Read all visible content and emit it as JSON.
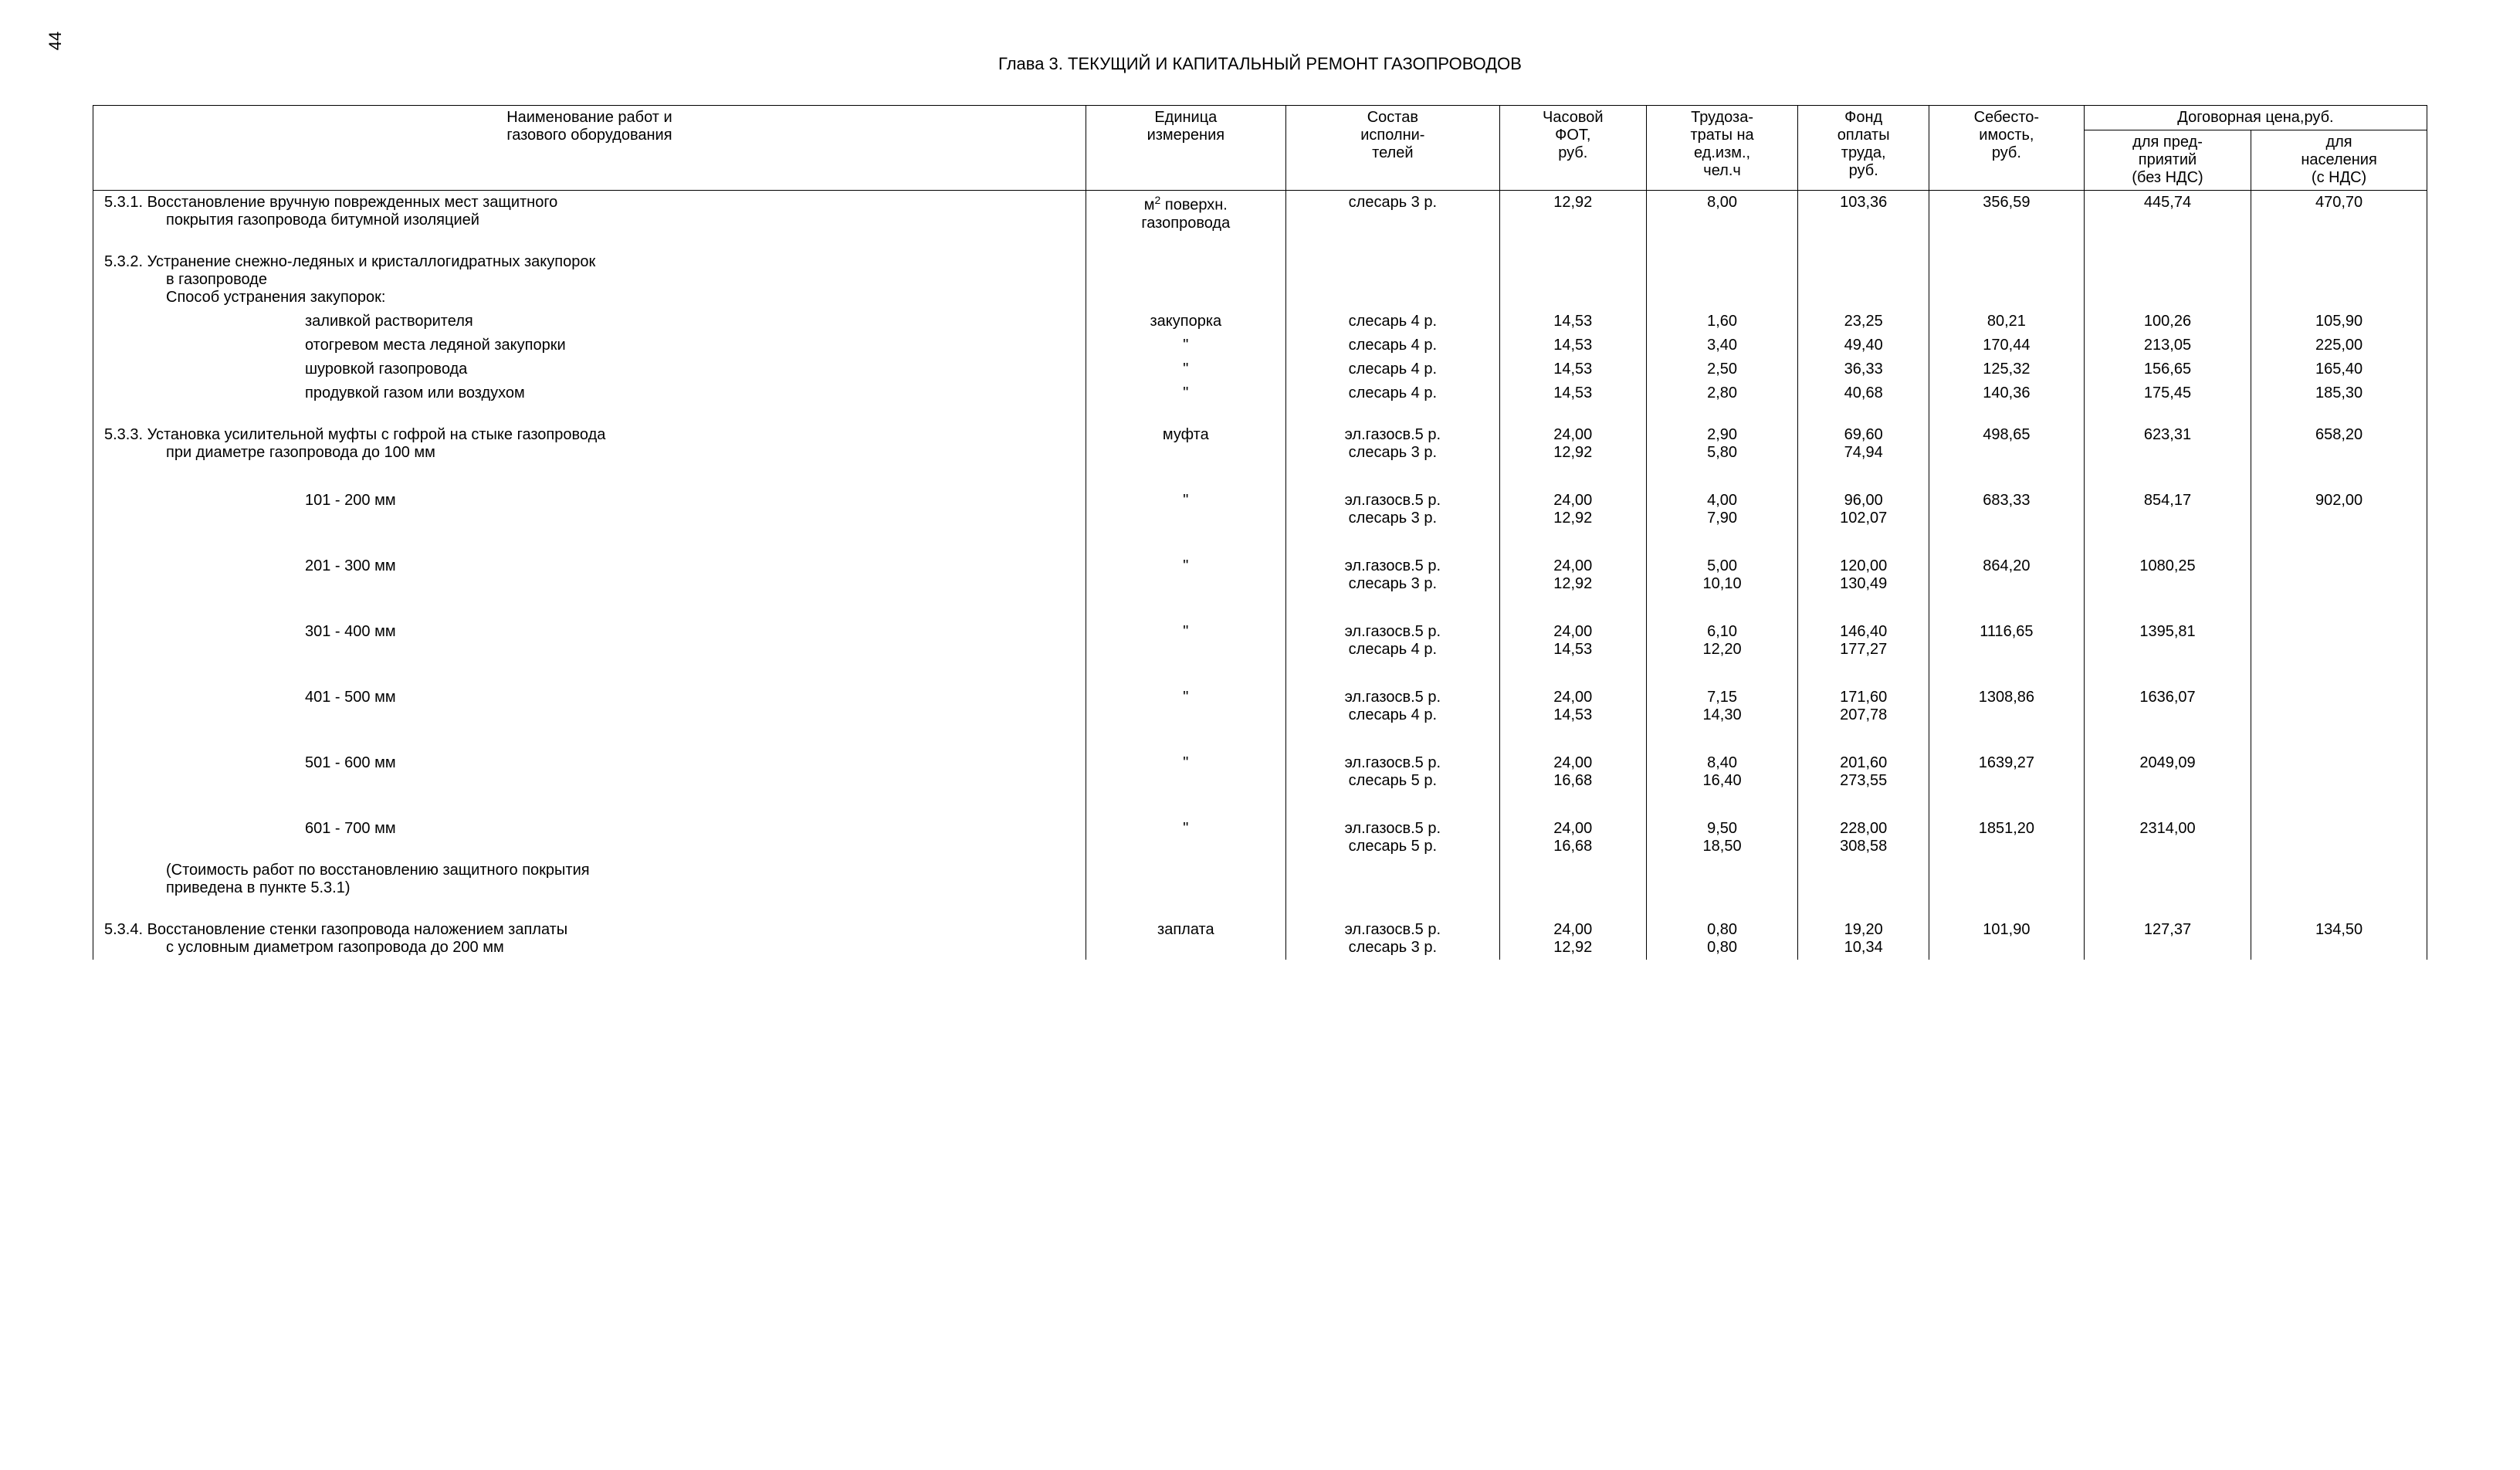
{
  "page_number": "44",
  "chapter_title": "Глава 3. ТЕКУЩИЙ  И  КАПИТАЛЬНЫЙ  РЕМОНТ  ГАЗОПРОВОДОВ",
  "columns": {
    "c1a": "Наименование работ и",
    "c1b": "газового оборудования",
    "c2a": "Единица",
    "c2b": "измерения",
    "c3a": "Состав",
    "c3b": "исполни-",
    "c3c": "телей",
    "c4a": "Часовой",
    "c4b": "ФОТ,",
    "c4c": "руб.",
    "c5a": "Трудоза-",
    "c5b": "траты на",
    "c5c": "ед.изм.,",
    "c5d": "чел.ч",
    "c6a": "Фонд",
    "c6b": "оплаты",
    "c6c": "труда,",
    "c6d": "руб.",
    "c7a": "Себесто-",
    "c7b": "имость,",
    "c7c": "руб.",
    "c8": "Договорная цена,руб.",
    "c8_1a": "для пред-",
    "c8_1b": "приятий",
    "c8_1c": "(без НДС)",
    "c8_2a": "для",
    "c8_2b": "населения",
    "c8_2c": "(с НДС)"
  },
  "rows": {
    "r1": {
      "name_l1": "5.3.1.  Восстановление вручную поврежденных мест защитного",
      "name_l2": "покрытия газопровода битумной изоляцией",
      "unit_l1": "м",
      "unit_sup": "2",
      "unit_l1b": " поверхн.",
      "unit_l2": "газопровода",
      "sost": "слесарь 3 р.",
      "fot": "12,92",
      "trud": "8,00",
      "fond": "103,36",
      "seb": "356,59",
      "dog1": "445,74",
      "dog2": "470,70"
    },
    "r2h": {
      "l1": "5.3.2.  Устранение  снежно-ледяных и кристаллогидратных закупорок",
      "l2": "в газопроводе",
      "l3": "Способ устранения закупорок:"
    },
    "r2a": {
      "name": "заливкой растворителя",
      "unit": "закупорка",
      "sost": "слесарь 4 р.",
      "fot": "14,53",
      "trud": "1,60",
      "fond": "23,25",
      "seb": "80,21",
      "dog1": "100,26",
      "dog2": "105,90"
    },
    "r2b": {
      "name": "отогревом места ледяной закупорки",
      "unit": "\"",
      "sost": "слесарь 4 р.",
      "fot": "14,53",
      "trud": "3,40",
      "fond": "49,40",
      "seb": "170,44",
      "dog1": "213,05",
      "dog2": "225,00"
    },
    "r2c": {
      "name": "шуровкой газопровода",
      "unit": "\"",
      "sost": "слесарь 4 р.",
      "fot": "14,53",
      "trud": "2,50",
      "fond": "36,33",
      "seb": "125,32",
      "dog1": "156,65",
      "dog2": "165,40"
    },
    "r2d": {
      "name": "продувкой газом или воздухом",
      "unit": "\"",
      "sost": "слесарь 4 р.",
      "fot": "14,53",
      "trud": "2,80",
      "fond": "40,68",
      "seb": "140,36",
      "dog1": "175,45",
      "dog2": "185,30"
    },
    "r3h": {
      "l1": "5.3.3.  Установка усилительной муфты с гофрой на стыке газопровода",
      "l2": "при диаметре газопровода до 100 мм",
      "unit": "муфта",
      "sost1": "эл.газосв.5 р.",
      "fot1": "24,00",
      "trud1": "2,90",
      "fond1": "69,60",
      "sost2": "слесарь 3 р.",
      "fot2": "12,92",
      "trud2": "5,80",
      "fond2": "74,94",
      "seb": "498,65",
      "dog1": "623,31",
      "dog2": "658,20"
    },
    "r3a": {
      "name": "101 - 200 мм",
      "unit": "\"",
      "sost1": "эл.газосв.5 р.",
      "fot1": "24,00",
      "trud1": "4,00",
      "fond1": "96,00",
      "sost2": "слесарь 3 р.",
      "fot2": "12,92",
      "trud2": "7,90",
      "fond2": "102,07",
      "seb": "683,33",
      "dog1": "854,17",
      "dog2": "902,00"
    },
    "r3b": {
      "name": "201 - 300 мм",
      "unit": "\"",
      "sost1": "эл.газосв.5 р.",
      "fot1": "24,00",
      "trud1": "5,00",
      "fond1": "120,00",
      "sost2": "слесарь 3 р.",
      "fot2": "12,92",
      "trud2": "10,10",
      "fond2": "130,49",
      "seb": "864,20",
      "dog1": "1080,25",
      "dog2": ""
    },
    "r3c": {
      "name": "301 - 400 мм",
      "unit": "\"",
      "sost1": "эл.газосв.5 р.",
      "fot1": "24,00",
      "trud1": "6,10",
      "fond1": "146,40",
      "sost2": "слесарь 4 р.",
      "fot2": "14,53",
      "trud2": "12,20",
      "fond2": "177,27",
      "seb": "1116,65",
      "dog1": "1395,81",
      "dog2": ""
    },
    "r3d": {
      "name": "401 - 500 мм",
      "unit": "\"",
      "sost1": "эл.газосв.5 р.",
      "fot1": "24,00",
      "trud1": "7,15",
      "fond1": "171,60",
      "sost2": "слесарь 4 р.",
      "fot2": "14,53",
      "trud2": "14,30",
      "fond2": "207,78",
      "seb": "1308,86",
      "dog1": "1636,07",
      "dog2": ""
    },
    "r3e": {
      "name": "501 - 600 мм",
      "unit": "\"",
      "sost1": "эл.газосв.5 р.",
      "fot1": "24,00",
      "trud1": "8,40",
      "fond1": "201,60",
      "sost2": "слесарь 5 р.",
      "fot2": "16,68",
      "trud2": "16,40",
      "fond2": "273,55",
      "seb": "1639,27",
      "dog1": "2049,09",
      "dog2": ""
    },
    "r3f": {
      "name": "601 - 700 мм",
      "unit": "\"",
      "sost1": "эл.газосв.5 р.",
      "fot1": "24,00",
      "trud1": "9,50",
      "fond1": "228,00",
      "sost2": "слесарь 5 р.",
      "fot2": "16,68",
      "trud2": "18,50",
      "fond2": "308,58",
      "seb": "1851,20",
      "dog1": "2314,00",
      "dog2": ""
    },
    "r3note": {
      "l1": "(Стоимость работ по восстановлению защитного покрытия",
      "l2": "приведена в пункте 5.3.1)"
    },
    "r4": {
      "l1": "5.3.4.  Восстановление стенки газопровода наложением заплаты",
      "l2": "с условным диаметром газопровода до 200 мм",
      "unit": "заплата",
      "sost1": "эл.газосв.5 р.",
      "fot1": "24,00",
      "trud1": "0,80",
      "fond1": "19,20",
      "sost2": "слесарь 3 р.",
      "fot2": "12,92",
      "trud2": "0,80",
      "fond2": "10,34",
      "seb": "101,90",
      "dog1": "127,37",
      "dog2": "134,50"
    }
  }
}
